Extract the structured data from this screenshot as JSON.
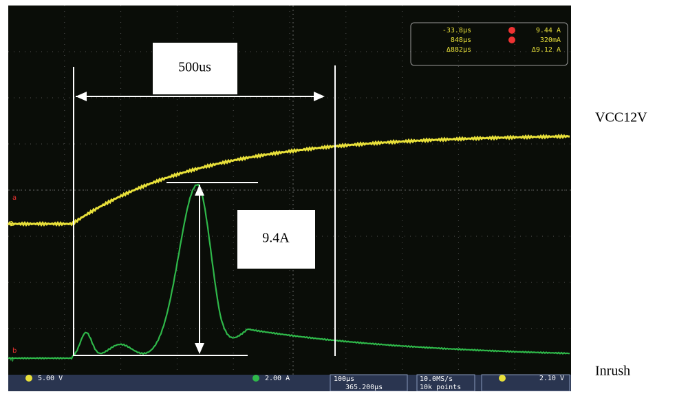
{
  "annotations": {
    "time_span": "500us",
    "peak_current": "9.4A"
  },
  "trace_labels": {
    "voltage": "VCC12V",
    "current": "Inrush"
  },
  "measurements": {
    "cursor_a_time": "-33.8µs",
    "cursor_a_value": "9.44 A",
    "cursor_b_time": "848µs",
    "cursor_b_value": "320mA",
    "delta_time": "Δ882µs",
    "delta_value": "Δ9.12 A"
  },
  "status_bar": {
    "ch1_scale": "5.00 V",
    "ch4_scale": "2.00 A",
    "timebase": "100µs",
    "trigger_position": "365.200µs",
    "sample_rate": "10.0MS/s",
    "record_length": "10k points",
    "trigger_level": "2.10 V"
  }
}
